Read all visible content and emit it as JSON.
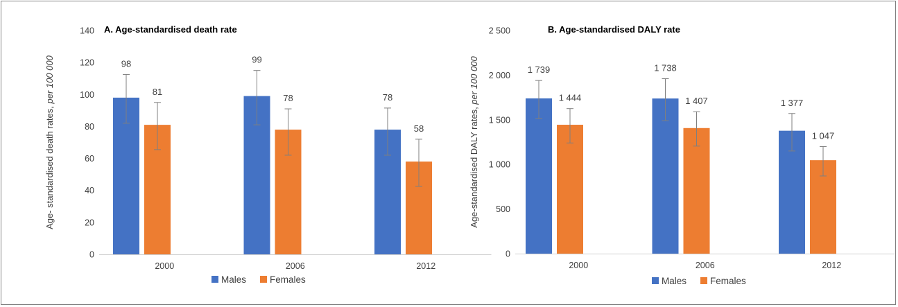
{
  "chart_data": [
    {
      "type": "bar",
      "title": "A. Age-standardised death rate",
      "ylabel_prefix": "Age- standardised death rates, ",
      "ylabel_italic": "per 100 000",
      "categories": [
        "2000",
        "2006",
        "2012"
      ],
      "ylim": [
        0,
        140
      ],
      "yticks": [
        0,
        20,
        40,
        60,
        80,
        100,
        120,
        140
      ],
      "ytick_labels": [
        "0",
        "20",
        "40",
        "60",
        "80",
        "100",
        "120",
        "140"
      ],
      "series": [
        {
          "name": "Males",
          "color": "#4472c4",
          "values": [
            98,
            99,
            78
          ],
          "labels": [
            "98",
            "99",
            "78"
          ],
          "err_low": [
            82,
            81,
            62
          ],
          "err_high": [
            112.5,
            115,
            91.5
          ]
        },
        {
          "name": "Females",
          "color": "#ed7d31",
          "values": [
            81,
            78,
            58
          ],
          "labels": [
            "81",
            "78",
            "58"
          ],
          "err_low": [
            65.5,
            62,
            42.5
          ],
          "err_high": [
            95,
            91,
            72
          ]
        }
      ],
      "legend": "bottom",
      "grid": false
    },
    {
      "type": "bar",
      "title": "B. Age-standardised DALY rate",
      "ylabel_prefix": "Age-standardised DALY rates, ",
      "ylabel_italic": "per 100 000",
      "categories": [
        "2000",
        "2006",
        "2012"
      ],
      "ylim": [
        0,
        2500
      ],
      "yticks": [
        0,
        500,
        1000,
        1500,
        2000,
        2500
      ],
      "ytick_labels": [
        "0",
        "500",
        "1 000",
        "1 500",
        "2 000",
        "2 500"
      ],
      "series": [
        {
          "name": "Males",
          "color": "#4472c4",
          "values": [
            1739,
            1738,
            1377
          ],
          "labels": [
            "1 739",
            "1 738",
            "1 377"
          ],
          "err_low": [
            1510,
            1490,
            1150
          ],
          "err_high": [
            1940,
            1960,
            1570
          ]
        },
        {
          "name": "Females",
          "color": "#ed7d31",
          "values": [
            1444,
            1407,
            1047
          ],
          "labels": [
            "1 444",
            "1 407",
            "1 047"
          ],
          "err_low": [
            1240,
            1205,
            870
          ],
          "err_high": [
            1625,
            1590,
            1200
          ]
        }
      ],
      "legend": "bottom",
      "grid": false
    }
  ]
}
